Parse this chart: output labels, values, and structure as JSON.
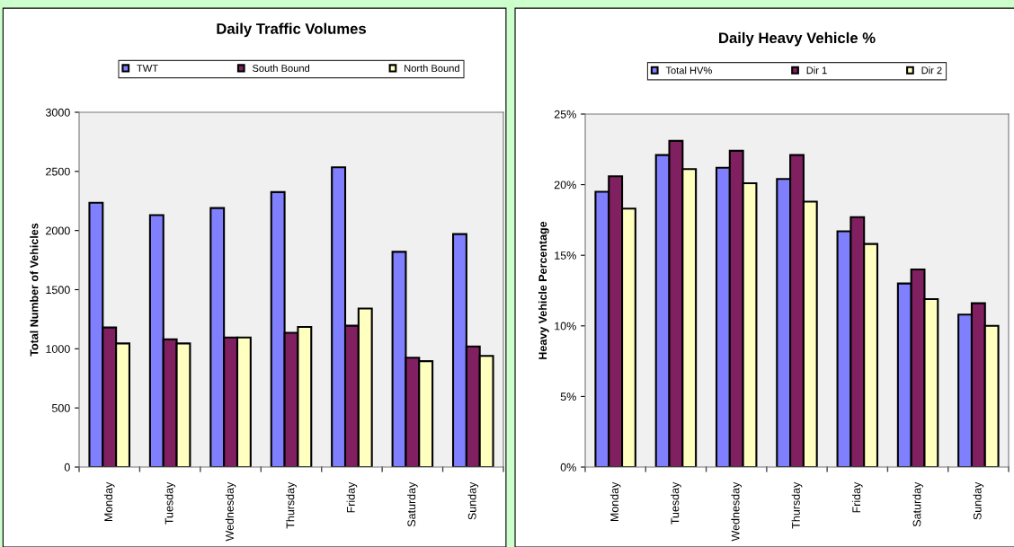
{
  "chart_data": [
    {
      "type": "bar",
      "title": "Daily Traffic Volumes",
      "ylabel": "Total Number of Vehicles",
      "categories": [
        "Monday",
        "Tuesday",
        "Wednesday",
        "Thursday",
        "Friday",
        "Saturday",
        "Sunday"
      ],
      "series": [
        {
          "name": "TWT",
          "color": "#8080ff",
          "values": [
            2235,
            2130,
            2190,
            2325,
            2535,
            1820,
            1970
          ]
        },
        {
          "name": "South Bound",
          "color": "#802060",
          "values": [
            1180,
            1080,
            1095,
            1135,
            1195,
            925,
            1020
          ]
        },
        {
          "name": "North Bound",
          "color": "#ffffc0",
          "values": [
            1045,
            1045,
            1095,
            1185,
            1340,
            895,
            940
          ]
        }
      ],
      "ylim": [
        0,
        3000
      ],
      "yticks": [
        0,
        500,
        1000,
        1500,
        2000,
        2500,
        3000
      ],
      "grid": false,
      "legend": "top"
    },
    {
      "type": "bar",
      "title": "Daily Heavy Vehicle %",
      "ylabel": "Heavy Vehicle Percentage",
      "categories": [
        "Monday",
        "Tuesday",
        "Wednesday",
        "Thursday",
        "Friday",
        "Saturday",
        "Sunday"
      ],
      "series": [
        {
          "name": "Total HV%",
          "color": "#8080ff",
          "values": [
            19.5,
            22.1,
            21.2,
            20.4,
            16.7,
            13.0,
            10.8
          ]
        },
        {
          "name": "Dir 1",
          "color": "#802060",
          "values": [
            20.6,
            23.1,
            22.4,
            22.1,
            17.7,
            14.0,
            11.6
          ]
        },
        {
          "name": "Dir 2",
          "color": "#ffffc0",
          "values": [
            18.3,
            21.1,
            20.1,
            18.8,
            15.8,
            11.9,
            10.0
          ]
        }
      ],
      "ylim": [
        0,
        25
      ],
      "yticks": [
        {
          "value": 0,
          "label": "0%"
        },
        {
          "value": 5,
          "label": "5%"
        },
        {
          "value": 10,
          "label": "10%"
        },
        {
          "value": 15,
          "label": "15%"
        },
        {
          "value": 20,
          "label": "20%"
        },
        {
          "value": 25,
          "label": "25%"
        }
      ],
      "grid": false,
      "legend": "top"
    }
  ]
}
